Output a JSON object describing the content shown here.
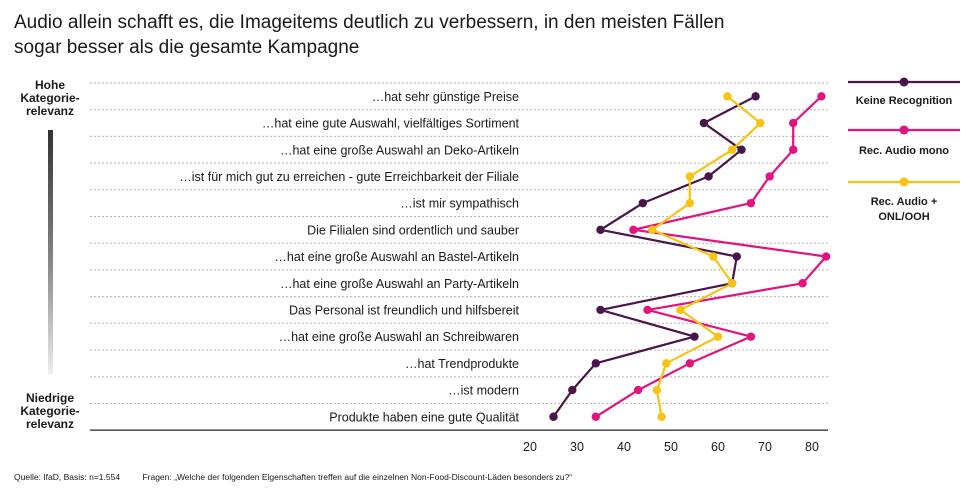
{
  "title_lines": [
    "Audio allein schafft es, die Imageitems deutlich zu verbessern, in den meisten Fällen",
    "sogar besser als die gesamte Kampagne"
  ],
  "relevance_axis": {
    "top_label": [
      "Hohe",
      "Kategorie-",
      "relevanz"
    ],
    "bottom_label": [
      "Niedrige",
      "Kategorie-",
      "relevanz"
    ]
  },
  "footer": {
    "source": "Quelle: IfaD, Basis: n=1.554",
    "question": "Fragen: „Welche der folgenden Eigenschaften treffen auf die einzelnen Non-Food-Discount-Läden besonders zu?“"
  },
  "chart_data": {
    "type": "line",
    "orientation": "horizontal",
    "title": "Audio allein schafft es, die Imageitems deutlich zu verbessern, in den meisten Fällen sogar besser als die gesamte Kampagne",
    "categories": [
      "…hat sehr günstige Preise",
      "…hat eine gute Auswahl, vielfältiges Sortiment",
      "…hat eine große Auswahl an Deko-Artikeln",
      "…ist für mich gut zu erreichen - gute Erreichbarkeit der Filiale",
      "…ist mir sympathisch",
      "Die Filialen sind ordentlich und sauber",
      "…hat eine große Auswahl an Bastel-Artikeln",
      "…hat eine große Auswahl an Party-Artikeln",
      "Das Personal ist freundlich und hilfsbereit",
      "…hat eine große Auswahl an Schreibwaren",
      "…hat Trendprodukte",
      "…ist modern",
      "Produkte haben eine gute Qualität"
    ],
    "series": [
      {
        "name": "Keine Recognition",
        "color": "#4a1548",
        "values": [
          68,
          57,
          65,
          58,
          44,
          35,
          64,
          63,
          35,
          55,
          34,
          29,
          25
        ]
      },
      {
        "name": "Rec. Audio mono",
        "color": "#e2137e",
        "values": [
          82,
          76,
          76,
          71,
          67,
          42,
          83,
          78,
          45,
          67,
          54,
          43,
          34
        ]
      },
      {
        "name": "Rec. Audio + ONL/OOH",
        "color": "#f9c312",
        "values": [
          62,
          69,
          63,
          54,
          54,
          46,
          59,
          63,
          52,
          60,
          49,
          47,
          48
        ]
      }
    ],
    "x_ticks": [
      20,
      30,
      40,
      50,
      60,
      70,
      80
    ],
    "xlim": [
      20,
      85
    ],
    "grid": "horizontal dashed row separators",
    "legend": "right"
  }
}
